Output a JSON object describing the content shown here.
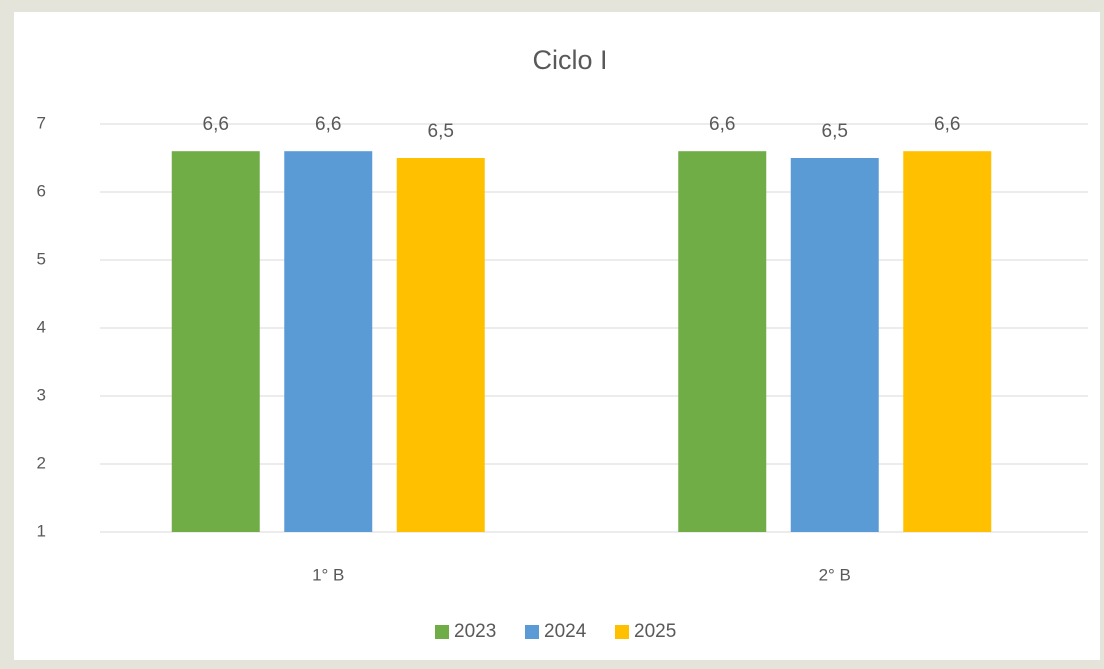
{
  "chart_data": {
    "type": "bar",
    "title": "Ciclo I",
    "categories": [
      "1° B",
      "2° B"
    ],
    "series": [
      {
        "name": "2023",
        "color": "#70ad47",
        "values": [
          6.6,
          6.6
        ],
        "value_labels": [
          "6,6",
          "6,6"
        ]
      },
      {
        "name": "2024",
        "color": "#5b9bd5",
        "values": [
          6.6,
          6.5
        ],
        "value_labels": [
          "6,6",
          "6,5"
        ]
      },
      {
        "name": "2025",
        "color": "#ffc000",
        "values": [
          6.5,
          6.6
        ],
        "value_labels": [
          "6,5",
          "6,6"
        ]
      }
    ],
    "ylim": [
      1,
      7
    ],
    "yticks": [
      1,
      2,
      3,
      4,
      5,
      6,
      7
    ],
    "grid": true,
    "legend": "bottom"
  }
}
